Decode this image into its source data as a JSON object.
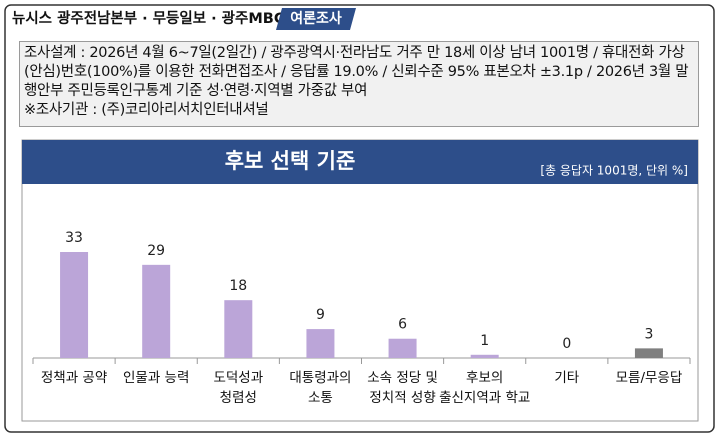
{
  "header": {
    "source": "뉴시스 광주전남본부 · 무등일보 · 광주MBC",
    "tag": "여론조사"
  },
  "survey_note": [
    "조사설계 : 2026년 4월 6~7일(2일간) / 광주광역시·전라남도 거주 만 18세 이상 남녀 1001명 / 휴대전화 가상(안심)번호(100%)를 이용한 전화면접조사 / 응답률 19.0% / 신뢰수준 95% 표본오차 ±3.1p / 2026년 3월 말 행안부 주민등록인구통계 기준 성·연령·지역별 가중값 부여",
    "※조사기관 : (주)코리아리서치인터내셔널"
  ],
  "chart_data": {
    "type": "bar",
    "title": "후보 선택 기준",
    "subtitle": "[총 응답자 1001명, 단위 %]",
    "categories": [
      [
        "정책과 공약"
      ],
      [
        "인물과 능력"
      ],
      [
        "도덕성과",
        "청렴성"
      ],
      [
        "대통령과의",
        "소통"
      ],
      [
        "소속 정당 및",
        "정치적 성향"
      ],
      [
        "후보의",
        "출신지역과 학교"
      ],
      [
        "기타"
      ],
      [
        "모름/무응답"
      ]
    ],
    "values": [
      33,
      29,
      18,
      9,
      6,
      1,
      0,
      3
    ],
    "colors": [
      "#bba5d8",
      "#bba5d8",
      "#bba5d8",
      "#bba5d8",
      "#bba5d8",
      "#bba5d8",
      "#bba5d8",
      "#7f7f7f"
    ]
  }
}
